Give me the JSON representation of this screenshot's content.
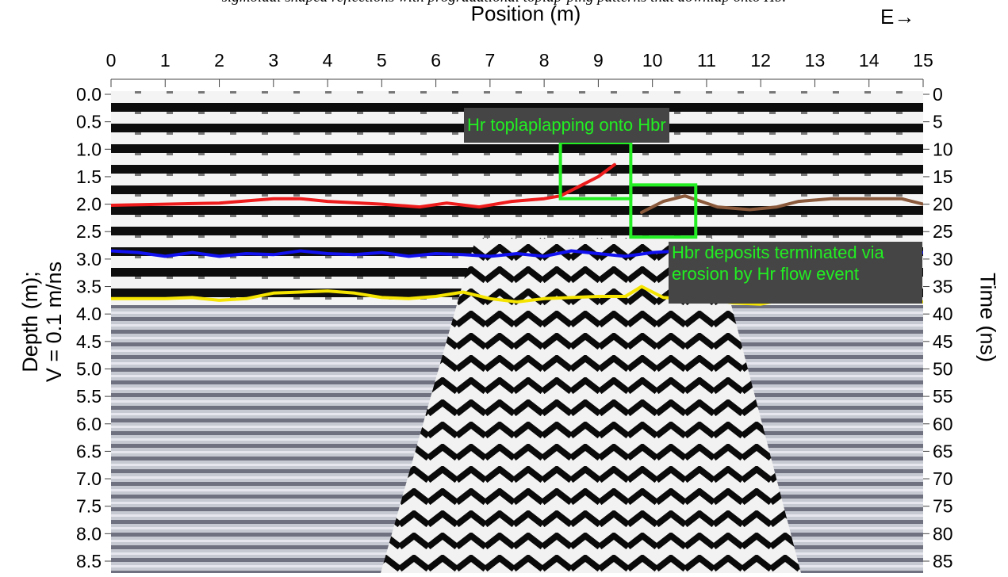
{
  "caption": "sigmoidal shaped reflections with progradational toplap-ping patterns that downlap onto Hb.",
  "chart_data": {
    "type": "line",
    "title": "",
    "xlabel": "Position (m)",
    "x_direction": "E→",
    "ylabel_left": [
      "Depth (m);",
      "V = 0.1 m/ns"
    ],
    "ylabel_right": "Time (ns)",
    "xlim": [
      0,
      15
    ],
    "ylim_depth": [
      0,
      8.5
    ],
    "ylim_time": [
      0,
      85
    ],
    "x_ticks": [
      "0",
      "1",
      "2",
      "3",
      "4",
      "5",
      "6",
      "7",
      "8",
      "9",
      "10",
      "11",
      "12",
      "13",
      "14",
      "15"
    ],
    "depth_ticks": [
      "0.0",
      "0.5",
      "1.0",
      "1.5",
      "2.0",
      "2.5",
      "3.0",
      "3.5",
      "4.0",
      "4.5",
      "5.0",
      "5.5",
      "6.0",
      "6.5",
      "7.0",
      "7.5",
      "8.0",
      "8.5"
    ],
    "time_ticks": [
      "0",
      "5",
      "10",
      "15",
      "20",
      "25",
      "30",
      "35",
      "40",
      "45",
      "50",
      "55",
      "60",
      "65",
      "70",
      "75",
      "80",
      "85"
    ],
    "series": [
      {
        "color": "#ee1c1c",
        "x": [
          0,
          1,
          2,
          3,
          3.5,
          4,
          5,
          5.7,
          6.2,
          6.8,
          7.4,
          8,
          8.3,
          8.6,
          9.0,
          9.3
        ],
        "y": [
          2.02,
          2.0,
          1.98,
          1.9,
          1.9,
          1.95,
          2.0,
          2.05,
          1.98,
          2.05,
          1.95,
          1.9,
          1.85,
          1.7,
          1.5,
          1.28
        ]
      },
      {
        "color": "#8b5a3c",
        "x": [
          9.8,
          10.2,
          10.6,
          11.2,
          11.8,
          12.3,
          12.7,
          13.3,
          14,
          14.6,
          15
        ],
        "y": [
          2.15,
          1.95,
          1.85,
          2.05,
          2.1,
          2.05,
          1.95,
          1.9,
          1.9,
          1.9,
          2.0
        ]
      },
      {
        "color": "#1010f0",
        "x": [
          0,
          0.5,
          1,
          1.5,
          2,
          2.5,
          3,
          3.5,
          4,
          4.5,
          5,
          5.5,
          6,
          6.5,
          7,
          7.5,
          8,
          8.5,
          9,
          9.5,
          10,
          10.5,
          11,
          11.5,
          12,
          12.5,
          13,
          13.5,
          14,
          14.5,
          15
        ],
        "y": [
          2.85,
          2.88,
          2.95,
          2.88,
          2.95,
          2.9,
          2.92,
          2.85,
          2.9,
          2.92,
          2.88,
          2.95,
          2.9,
          2.92,
          2.95,
          2.9,
          2.95,
          2.85,
          2.9,
          2.95,
          2.88,
          2.85,
          2.95,
          2.92,
          2.9,
          2.95,
          2.92,
          2.95,
          3.0,
          2.9,
          2.88
        ]
      },
      {
        "color": "#f5e400",
        "x": [
          0,
          0.5,
          1,
          1.5,
          2,
          2.5,
          3,
          3.5,
          4,
          4.5,
          5,
          5.5,
          6,
          6.5,
          7,
          7.5,
          8,
          8.5,
          9,
          9.5,
          9.8,
          10.2,
          10.6,
          11,
          11.5,
          12,
          12.5,
          13,
          13.5,
          14,
          14.5,
          15
        ],
        "y": [
          3.72,
          3.72,
          3.72,
          3.7,
          3.75,
          3.72,
          3.62,
          3.6,
          3.58,
          3.62,
          3.7,
          3.72,
          3.68,
          3.6,
          3.72,
          3.78,
          3.72,
          3.7,
          3.68,
          3.68,
          3.5,
          3.7,
          3.72,
          3.72,
          3.8,
          3.82,
          3.72,
          3.75,
          3.72,
          3.75,
          3.78,
          3.78
        ]
      }
    ],
    "annotations": [
      {
        "text": "Hr toplaplapping onto Hbr",
        "box": {
          "x0": 8.3,
          "x1": 9.6,
          "y0": 0.88,
          "y1": 1.9
        }
      },
      {
        "text": [
          "Hbr deposits terminated via",
          "erosion by Hr flow event"
        ],
        "box": {
          "x0": 9.6,
          "x1": 10.8,
          "y0": 1.65,
          "y1": 2.6
        }
      }
    ],
    "annotation_color": "#22ee22"
  }
}
